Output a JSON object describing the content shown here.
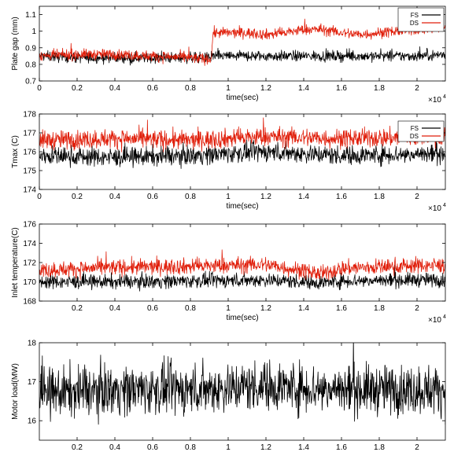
{
  "colors": {
    "FS": "#000000",
    "DS": "#e01e0a",
    "axis": "#000000",
    "background": "#ffffff"
  },
  "chart_data": [
    {
      "type": "line",
      "ylabel": "Plate gap (mm)",
      "xlabel": "time(sec)",
      "xlim": [
        0,
        21500
      ],
      "ylim": [
        0.7,
        1.15
      ],
      "xticks": [
        0,
        2000,
        4000,
        6000,
        8000,
        10000,
        12000,
        14000,
        16000,
        18000,
        20000
      ],
      "xtick_labels": [
        "0",
        "0.2",
        "0.4",
        "0.6",
        "0.8",
        "1",
        "1.2",
        "1.4",
        "1.6",
        "1.8",
        "2"
      ],
      "yticks": [
        0.7,
        0.8,
        0.9,
        1.0,
        1.1
      ],
      "ytick_labels": [
        "0.7",
        "0.8",
        "0.9",
        "1",
        "1.1"
      ],
      "x_multiplier": "×10",
      "x_multiplier_exp": "4",
      "legend": [
        "FS",
        "DS"
      ],
      "legend_position": "top-right",
      "series": [
        {
          "name": "FS",
          "color": "#000000",
          "noise": 0.035,
          "x": [
            0,
            2000,
            4000,
            6000,
            8000,
            9100,
            9200,
            12000,
            14000,
            16000,
            18000,
            20000,
            21500
          ],
          "y": [
            0.85,
            0.84,
            0.84,
            0.84,
            0.84,
            0.84,
            0.85,
            0.85,
            0.85,
            0.85,
            0.85,
            0.85,
            0.86
          ]
        },
        {
          "name": "DS",
          "color": "#e01e0a",
          "noise": 0.035,
          "x": [
            0,
            2000,
            4000,
            6000,
            8000,
            9100,
            9200,
            11000,
            12000,
            13000,
            14000,
            15000,
            16000,
            17000,
            18000,
            19000,
            20000,
            21500
          ],
          "y": [
            0.85,
            0.86,
            0.86,
            0.85,
            0.84,
            0.83,
            0.99,
            0.99,
            0.98,
            0.99,
            1.01,
            1.01,
            0.99,
            0.98,
            0.99,
            1.0,
            1.01,
            1.02
          ]
        }
      ]
    },
    {
      "type": "line",
      "ylabel": "Tmax (C)",
      "xlabel": "time(sec)",
      "xlim": [
        0,
        21500
      ],
      "ylim": [
        174,
        178
      ],
      "xticks": [
        0,
        2000,
        4000,
        6000,
        8000,
        10000,
        12000,
        14000,
        16000,
        18000,
        20000
      ],
      "xtick_labels": [
        "0",
        "0.2",
        "0.4",
        "0.6",
        "0.8",
        "1",
        "1.2",
        "1.4",
        "1.6",
        "1.8",
        "2"
      ],
      "yticks": [
        174,
        175,
        176,
        177,
        178
      ],
      "ytick_labels": [
        "174",
        "175",
        "176",
        "177",
        "178"
      ],
      "x_multiplier": "×10",
      "x_multiplier_exp": "4",
      "legend": [
        "FS",
        "DS"
      ],
      "legend_position": "top-right",
      "series": [
        {
          "name": "FS",
          "color": "#000000",
          "noise": 0.55,
          "x": [
            0,
            4000,
            8000,
            12000,
            16000,
            21500
          ],
          "y": [
            175.8,
            175.7,
            175.8,
            176.0,
            175.8,
            175.9
          ]
        },
        {
          "name": "DS",
          "color": "#e01e0a",
          "noise": 0.55,
          "x": [
            0,
            4000,
            8000,
            12000,
            16000,
            21500
          ],
          "y": [
            176.6,
            176.7,
            176.6,
            176.8,
            176.7,
            176.8
          ]
        }
      ]
    },
    {
      "type": "line",
      "ylabel": "Inlet temperature(C)",
      "xlabel": "time(sec)",
      "xlim": [
        0,
        21500
      ],
      "ylim": [
        168,
        176
      ],
      "xticks": [
        2000,
        4000,
        6000,
        8000,
        10000,
        12000,
        14000,
        16000,
        18000,
        20000
      ],
      "xtick_labels": [
        "0.2",
        "0.4",
        "0.6",
        "0.8",
        "1",
        "1.2",
        "1.4",
        "1.6",
        "1.8",
        "2"
      ],
      "yticks": [
        168,
        170,
        172,
        174,
        176
      ],
      "ytick_labels": [
        "168",
        "170",
        "172",
        "174",
        "176"
      ],
      "x_multiplier": "×10",
      "x_multiplier_exp": "4",
      "legend": [],
      "series": [
        {
          "name": "",
          "color": "#000000",
          "noise": 0.8,
          "x": [
            0,
            4000,
            8000,
            12000,
            15000,
            16000,
            20000,
            21500
          ],
          "y": [
            170.0,
            170.0,
            170.1,
            170.2,
            169.9,
            170.1,
            170.2,
            170.2
          ]
        },
        {
          "name": "",
          "color": "#e01e0a",
          "noise": 0.9,
          "x": [
            0,
            4000,
            8000,
            12000,
            15000,
            16000,
            20000,
            21500
          ],
          "y": [
            171.2,
            171.5,
            171.6,
            171.8,
            170.8,
            171.4,
            171.7,
            171.7
          ]
        }
      ]
    },
    {
      "type": "line",
      "ylabel": "Motor load(MW)",
      "xlabel": "time(sec)",
      "xlim": [
        0,
        21500
      ],
      "ylim": [
        15.5,
        18
      ],
      "xticks": [
        2000,
        4000,
        6000,
        8000,
        10000,
        12000,
        14000,
        16000,
        18000,
        20000
      ],
      "xtick_labels": [
        "0.2",
        "0.4",
        "0.6",
        "0.8",
        "1",
        "1.2",
        "1.4",
        "1.6",
        "1.8",
        "2"
      ],
      "yticks": [
        16,
        17,
        18
      ],
      "ytick_labels": [
        "16",
        "17",
        "18"
      ],
      "x_multiplier": "×10",
      "x_multiplier_exp": "4",
      "legend": [],
      "series": [
        {
          "name": "",
          "color": "#000000",
          "noise": 0.7,
          "x": [
            0,
            4000,
            8000,
            12000,
            16000,
            21500
          ],
          "y": [
            16.7,
            16.8,
            16.8,
            16.9,
            16.8,
            16.8
          ]
        }
      ]
    }
  ]
}
